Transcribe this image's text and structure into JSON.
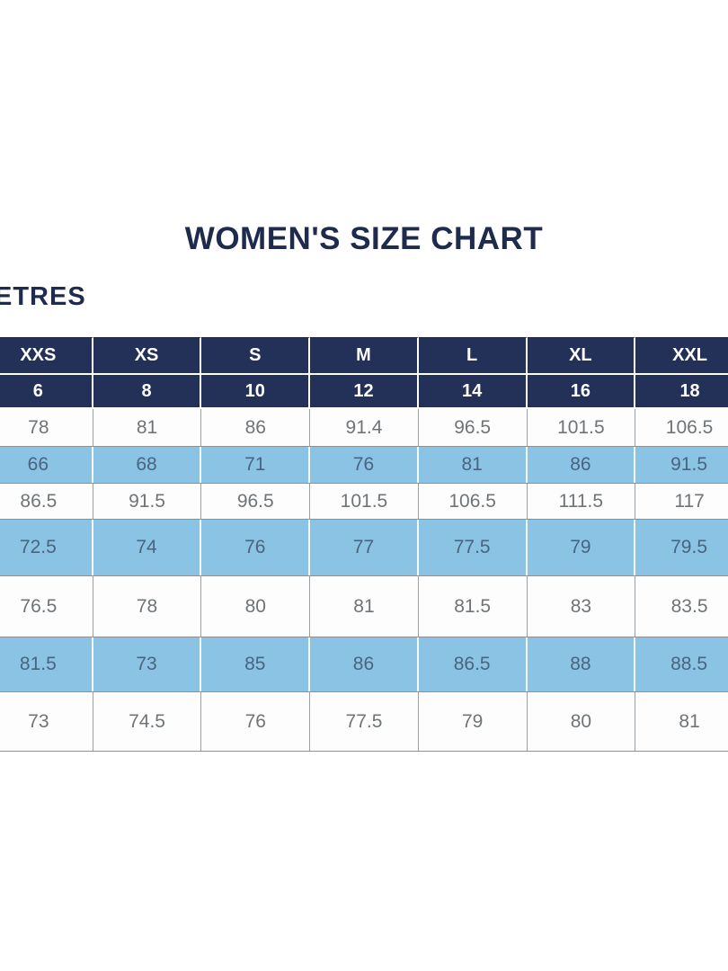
{
  "page": {
    "title": "WOMEN'S SIZE CHART",
    "units_label_fragment": "ETRES"
  },
  "colors": {
    "navy": "#233057",
    "light_blue": "#8bc3e5",
    "title_text": "#1f2b4d",
    "white_row_text": "#6e7477",
    "blue_row_text": "#49647e"
  },
  "chart_data": {
    "type": "table",
    "title": "WOMEN'S SIZE CHART",
    "size_labels": [
      "XXS",
      "XS",
      "S",
      "M",
      "L",
      "XL",
      "XXL"
    ],
    "numeric_sizes": [
      "6",
      "8",
      "10",
      "12",
      "14",
      "16",
      "18"
    ],
    "rows": [
      {
        "highlighted": false,
        "values": [
          "78",
          "81",
          "86",
          "91.4",
          "96.5",
          "101.5",
          "106.5"
        ]
      },
      {
        "highlighted": true,
        "values": [
          "66",
          "68",
          "71",
          "76",
          "81",
          "86",
          "91.5"
        ]
      },
      {
        "highlighted": false,
        "values": [
          "86.5",
          "91.5",
          "96.5",
          "101.5",
          "106.5",
          "111.5",
          "117"
        ]
      },
      {
        "highlighted": true,
        "values": [
          "72.5",
          "74",
          "76",
          "77",
          "77.5",
          "79",
          "79.5"
        ]
      },
      {
        "highlighted": false,
        "values": [
          "76.5",
          "78",
          "80",
          "81",
          "81.5",
          "83",
          "83.5"
        ]
      },
      {
        "highlighted": true,
        "values": [
          "81.5",
          "73",
          "85",
          "86",
          "86.5",
          "88",
          "88.5"
        ]
      },
      {
        "highlighted": false,
        "values": [
          "73",
          "74.5",
          "76",
          "77.5",
          "79",
          "80",
          "81"
        ]
      }
    ]
  }
}
